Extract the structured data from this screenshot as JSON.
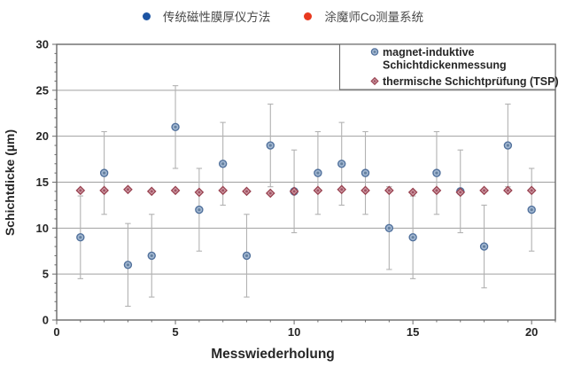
{
  "top_legend": {
    "items": [
      {
        "label": "传统磁性膜厚仪方法",
        "color": "#1c54a3"
      },
      {
        "label": "涂魔师Co测量系统",
        "color": "#e8391f"
      }
    ]
  },
  "chart_data": {
    "type": "scatter",
    "title": "",
    "xlabel": "Messwiederholung",
    "ylabel": "Schichtdicke (µm)",
    "xlim": [
      0,
      21
    ],
    "ylim": [
      0,
      30
    ],
    "x_major_ticks": [
      0,
      5,
      10,
      15,
      20
    ],
    "y_major_ticks": [
      0,
      5,
      10,
      15,
      20,
      25,
      30
    ],
    "x_minor_step": 1,
    "y_minor_step": 1,
    "grid": "horizontal-major",
    "x": [
      1,
      2,
      3,
      4,
      5,
      6,
      7,
      8,
      9,
      10,
      11,
      12,
      13,
      14,
      15,
      16,
      17,
      18,
      19,
      20
    ],
    "series": [
      {
        "name": "magnet-induktive Schichtdickenmessung",
        "legend_lines": [
          "magnet-induktive",
          "Schichtdickenmessung"
        ],
        "marker": "circle",
        "stroke": "#51719c",
        "fill": "#a3b8d2",
        "inner": "#64809f",
        "values": [
          9,
          16,
          6,
          7,
          21,
          12,
          17,
          7,
          19,
          14,
          16,
          17,
          16,
          10,
          9,
          16,
          14,
          8,
          19,
          12
        ],
        "error_bar": 4.5,
        "error_color": "#b2b2b2"
      },
      {
        "name": "thermische Schichtprüfung (TSP)",
        "legend_lines": [
          "thermische Schichtprüfung (TSP)"
        ],
        "marker": "diamond",
        "stroke": "#98414f",
        "fill": "#cf9ca6",
        "inner": "#a05364",
        "values": [
          14.1,
          14.1,
          14.2,
          14.0,
          14.1,
          13.9,
          14.1,
          14.0,
          13.8,
          14.0,
          14.1,
          14.2,
          14.1,
          14.1,
          13.9,
          14.1,
          13.9,
          14.1,
          14.1,
          14.1
        ]
      }
    ],
    "legend_position": "top-right",
    "style": {
      "border_color": "#6a6a6a",
      "grid_color": "#a0a0a0",
      "background": "#ffffff"
    }
  }
}
